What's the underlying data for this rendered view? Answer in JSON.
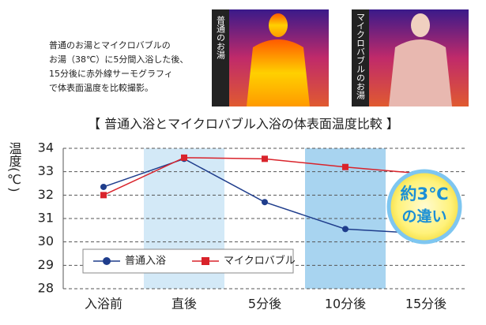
{
  "chart_data": {
    "type": "line",
    "intro": [
      "普通のお湯とマイクロバブルの",
      "お湯（38℃）に5分間入浴した後、",
      "15分後に赤外線サーモグラフィ",
      "で体表面温度を比較撮影。"
    ],
    "photo_labels": [
      "普通のお湯",
      "マイクロバブルのお湯"
    ],
    "title": "【 普通入浴とマイクロバブル入浴の体表面温度比較 】",
    "y_label": "温度(℃)",
    "categories": [
      "入浴前",
      "直後",
      "5分後",
      "10分後",
      "15分後"
    ],
    "series": [
      {
        "name": "普通入浴",
        "color": "#1f3d8c",
        "marker": "circle",
        "values": [
          32.35,
          33.55,
          31.7,
          30.55,
          30.35
        ]
      },
      {
        "name": "マイクロバブル",
        "color": "#d9232b",
        "marker": "square",
        "values": [
          32.0,
          33.6,
          33.55,
          33.2,
          32.9
        ]
      }
    ],
    "ylim": [
      28,
      34
    ],
    "yticks": [
      28,
      29,
      30,
      31,
      32,
      33,
      34
    ],
    "grid": true,
    "highlight_bands": [
      {
        "index": 1,
        "color": "#d3e9f7"
      },
      {
        "index": 3,
        "color": "#a8d4f0"
      }
    ],
    "annotation": [
      "約3℃",
      "の違い"
    ],
    "legend": "lower left"
  }
}
